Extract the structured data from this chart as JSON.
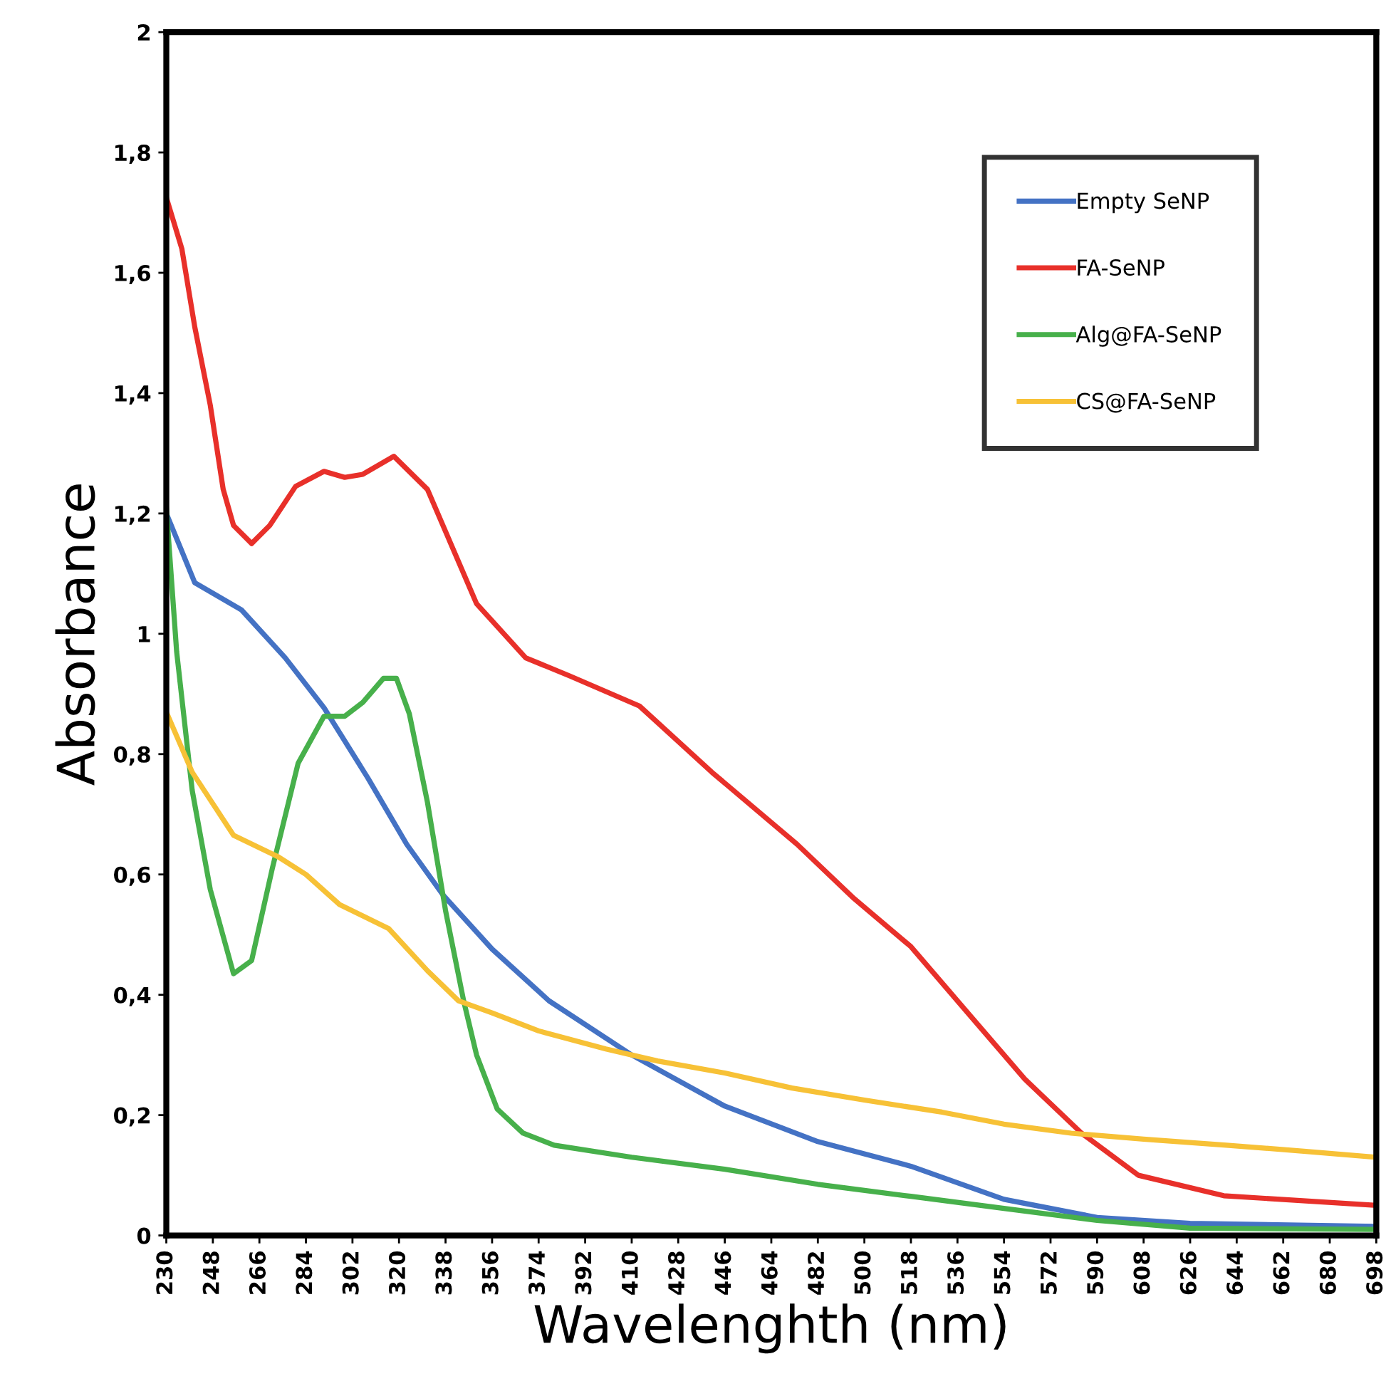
{
  "chart_data": {
    "type": "line",
    "xlabel": "Wavelenghth (nm)",
    "ylabel": "Absorbance",
    "xlim": [
      230,
      698
    ],
    "xticks": [
      230,
      248,
      266,
      284,
      302,
      320,
      338,
      356,
      374,
      392,
      410,
      428,
      446,
      464,
      482,
      500,
      518,
      536,
      554,
      572,
      590,
      608,
      626,
      644,
      662,
      680,
      698
    ],
    "ylim": [
      0,
      2
    ],
    "yticks": [
      0,
      {
        "value": 0.2,
        "label": "0,2"
      },
      {
        "value": 0.4,
        "label": "0,4"
      },
      {
        "value": 0.6,
        "label": "0,6"
      },
      {
        "value": 0.8,
        "label": "0,8"
      },
      1,
      {
        "value": 1.2,
        "label": "1,2"
      },
      {
        "value": 1.4,
        "label": "1,4"
      },
      {
        "value": 1.6,
        "label": "1,6"
      },
      {
        "value": 1.8,
        "label": "1,8"
      },
      2
    ],
    "grid": false,
    "legend": "top right",
    "marker": "none",
    "line_style": "solid",
    "series": [
      {
        "name": "Empty SeNP",
        "color": "#4472c4",
        "x": [
          230,
          241,
          259,
          276,
          291,
          308,
          323,
          337,
          356,
          378,
          410,
          446,
          482,
          518,
          554,
          590,
          626,
          698
        ],
        "values": [
          1.2,
          1.085,
          1.04,
          0.96,
          0.877,
          0.76,
          0.65,
          0.566,
          0.476,
          0.39,
          0.3,
          0.215,
          0.156,
          0.115,
          0.06,
          0.03,
          0.02,
          0.015
        ]
      },
      {
        "name": "FA-SeNP",
        "color": "#e8302a",
        "x": [
          230,
          236,
          241,
          247,
          252,
          256,
          263,
          270,
          280,
          291,
          299,
          306,
          318,
          331,
          339,
          350,
          369,
          386,
          413,
          441,
          474,
          496,
          518,
          540,
          562,
          584,
          606,
          639,
          698
        ],
        "values": [
          1.725,
          1.64,
          1.51,
          1.38,
          1.24,
          1.18,
          1.15,
          1.18,
          1.245,
          1.27,
          1.26,
          1.265,
          1.295,
          1.24,
          1.16,
          1.05,
          0.96,
          0.93,
          0.88,
          0.77,
          0.65,
          0.56,
          0.48,
          0.37,
          0.26,
          0.17,
          0.1,
          0.066,
          0.05
        ]
      },
      {
        "name": "Alg@FA-SeNP",
        "color": "#47b04b",
        "x": [
          230,
          234,
          240,
          247,
          256,
          263,
          271,
          281,
          291,
          299,
          306,
          314,
          319,
          324,
          331,
          338,
          345,
          350,
          358,
          368,
          380,
          410,
          446,
          482,
          518,
          554,
          590,
          626,
          698
        ],
        "values": [
          1.21,
          0.97,
          0.74,
          0.575,
          0.435,
          0.457,
          0.61,
          0.785,
          0.863,
          0.863,
          0.886,
          0.926,
          0.926,
          0.867,
          0.72,
          0.54,
          0.39,
          0.3,
          0.21,
          0.17,
          0.15,
          0.13,
          0.11,
          0.085,
          0.065,
          0.045,
          0.025,
          0.012,
          0.01
        ]
      },
      {
        "name": "CS@FA-SeNP",
        "color": "#f7c136",
        "x": [
          230,
          240,
          256,
          273,
          284,
          297,
          316,
          331,
          343,
          356,
          374,
          400,
          420,
          446,
          472,
          500,
          530,
          554,
          580,
          608,
          640,
          670,
          698
        ],
        "values": [
          0.87,
          0.77,
          0.665,
          0.63,
          0.6,
          0.55,
          0.51,
          0.44,
          0.39,
          0.37,
          0.34,
          0.31,
          0.29,
          0.27,
          0.245,
          0.225,
          0.205,
          0.185,
          0.17,
          0.16,
          0.15,
          0.14,
          0.13
        ]
      }
    ]
  }
}
